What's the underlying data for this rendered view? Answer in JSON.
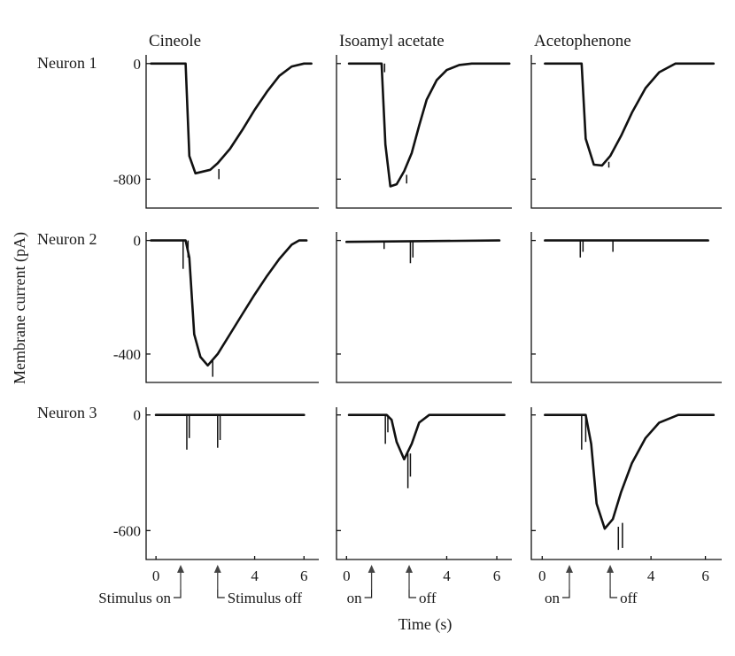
{
  "chart_data": {
    "type": "line",
    "columns": [
      "Cineole",
      "Isoamyl acetate",
      "Acetophenone"
    ],
    "rows": [
      {
        "label": "Neuron 1",
        "yticks": [
          0,
          -800
        ],
        "ylim": [
          -1000,
          60
        ]
      },
      {
        "label": "Neuron 2",
        "yticks": [
          0,
          -400
        ],
        "ylim": [
          -500,
          30
        ]
      },
      {
        "label": "Neuron 3",
        "yticks": [
          0,
          -600
        ],
        "ylim": [
          -750,
          40
        ]
      }
    ],
    "xlabel": "Time (s)",
    "ylabel": "Membrane current (pA)",
    "xlim": [
      -0.4,
      6.6
    ],
    "xticks": [
      0,
      4,
      6
    ],
    "stimulus": {
      "on_time": 1.0,
      "off_time": 2.5
    },
    "stimulus_labels": [
      {
        "on": "Stimulus on",
        "off": "Stimulus off"
      },
      {
        "on": "on",
        "off": "off"
      },
      {
        "on": "on",
        "off": "off"
      }
    ],
    "panels": [
      [
        {
          "x": [
            -0.2,
            1.2,
            1.35,
            1.6,
            2.2,
            2.5,
            3.0,
            3.5,
            4.0,
            4.5,
            5.0,
            5.5,
            6.0,
            6.3
          ],
          "y": [
            0,
            0,
            -640,
            -760,
            -735,
            -690,
            -590,
            -460,
            -320,
            -195,
            -85,
            -20,
            0,
            0
          ]
        },
        {
          "x": [
            0.1,
            1.4,
            1.55,
            1.75,
            2.0,
            2.3,
            2.6,
            2.9,
            3.2,
            3.6,
            4.0,
            4.5,
            5.0,
            5.5,
            6.5
          ],
          "y": [
            0,
            0,
            -560,
            -850,
            -835,
            -745,
            -620,
            -430,
            -250,
            -115,
            -45,
            -10,
            0,
            0,
            0
          ]
        },
        {
          "x": [
            0.1,
            1.45,
            1.6,
            1.9,
            2.2,
            2.5,
            2.9,
            3.3,
            3.8,
            4.3,
            4.9,
            6.3
          ],
          "y": [
            0,
            0,
            -520,
            -700,
            -705,
            -640,
            -500,
            -340,
            -170,
            -60,
            0,
            0
          ]
        }
      ],
      [
        {
          "x": [
            -0.2,
            1.2,
            1.35,
            1.55,
            1.8,
            2.1,
            2.5,
            3.0,
            3.5,
            4.0,
            4.5,
            5.0,
            5.5,
            5.8,
            6.1
          ],
          "y": [
            0,
            0,
            -60,
            -330,
            -410,
            -440,
            -400,
            -330,
            -260,
            -190,
            -125,
            -65,
            -15,
            0,
            0
          ]
        },
        {
          "x": [
            0.0,
            6.1
          ],
          "y": [
            -5,
            0
          ]
        },
        {
          "x": [
            0.1,
            6.1
          ],
          "y": [
            0,
            0
          ]
        }
      ],
      [
        {
          "x": [
            0.0,
            6.0
          ],
          "y": [
            0,
            0
          ]
        },
        {
          "x": [
            0.1,
            1.6,
            1.8,
            2.0,
            2.3,
            2.6,
            2.9,
            3.3,
            6.3
          ],
          "y": [
            0,
            0,
            -25,
            -140,
            -230,
            -150,
            -40,
            0,
            0
          ]
        },
        {
          "x": [
            0.1,
            1.6,
            1.8,
            2.0,
            2.3,
            2.6,
            2.9,
            3.3,
            3.8,
            4.3,
            5.0,
            6.3
          ],
          "y": [
            0,
            0,
            -150,
            -460,
            -590,
            -540,
            -400,
            -250,
            -120,
            -40,
            0,
            0
          ]
        }
      ]
    ],
    "spikes": [
      [
        [
          {
            "x": 2.55,
            "y_top": -730,
            "y_bottom": -800
          }
        ],
        [
          {
            "x": 1.42,
            "y_top": 0,
            "y_bottom": -80
          },
          {
            "x": 1.52,
            "y_top": 0,
            "y_bottom": -60
          },
          {
            "x": 2.4,
            "y_top": -770,
            "y_bottom": -830
          }
        ],
        [
          {
            "x": 2.45,
            "y_top": -680,
            "y_bottom": -720
          }
        ]
      ],
      [
        [
          {
            "x": 1.1,
            "y_top": 0,
            "y_bottom": -100
          },
          {
            "x": 1.3,
            "y_top": 0,
            "y_bottom": -60
          },
          {
            "x": 2.3,
            "y_top": -420,
            "y_bottom": -480
          }
        ],
        [
          {
            "x": 1.5,
            "y_top": 0,
            "y_bottom": -30
          },
          {
            "x": 2.55,
            "y_top": 0,
            "y_bottom": -80
          },
          {
            "x": 2.65,
            "y_top": 0,
            "y_bottom": -60
          }
        ],
        [
          {
            "x": 1.4,
            "y_top": 0,
            "y_bottom": -60
          },
          {
            "x": 1.5,
            "y_top": 0,
            "y_bottom": -40
          },
          {
            "x": 2.6,
            "y_top": 0,
            "y_bottom": -40
          }
        ]
      ],
      [
        [
          {
            "x": 1.25,
            "y_top": 0,
            "y_bottom": -180
          },
          {
            "x": 1.35,
            "y_top": 0,
            "y_bottom": -120
          },
          {
            "x": 2.5,
            "y_top": 0,
            "y_bottom": -170
          },
          {
            "x": 2.6,
            "y_top": 0,
            "y_bottom": -130
          }
        ],
        [
          {
            "x": 1.55,
            "y_top": 0,
            "y_bottom": -150
          },
          {
            "x": 1.65,
            "y_top": 0,
            "y_bottom": -90
          },
          {
            "x": 2.45,
            "y_top": -200,
            "y_bottom": -380
          },
          {
            "x": 2.55,
            "y_top": -200,
            "y_bottom": -320
          }
        ],
        [
          {
            "x": 1.45,
            "y_top": 0,
            "y_bottom": -180
          },
          {
            "x": 1.6,
            "y_top": 0,
            "y_bottom": -140
          },
          {
            "x": 2.8,
            "y_top": -580,
            "y_bottom": -700
          },
          {
            "x": 2.95,
            "y_top": -560,
            "y_bottom": -690
          }
        ]
      ]
    ]
  }
}
